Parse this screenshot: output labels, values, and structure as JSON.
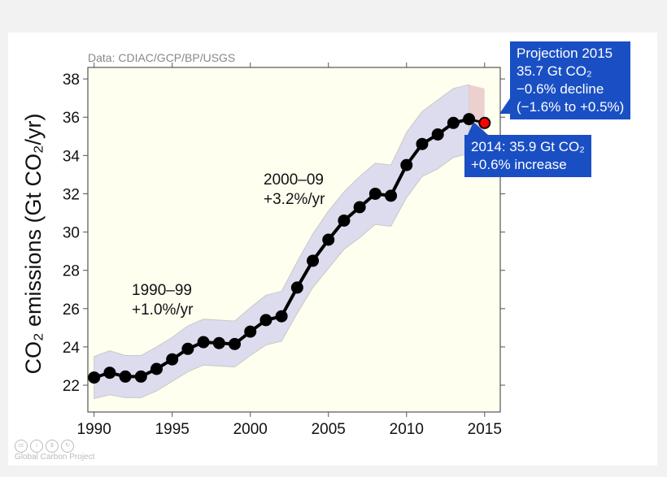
{
  "chart_data": {
    "type": "line",
    "source_note": "Data: CDIAC/GCP/BP/USGS",
    "ylabel": "CO₂ emissions (Gt CO₂/yr)",
    "xlabel": "",
    "xlim": [
      1989.6,
      2016
    ],
    "ylim": [
      20.6,
      38.6
    ],
    "x_ticks": [
      1990,
      1995,
      2000,
      2005,
      2010,
      2015
    ],
    "y_ticks": [
      22,
      24,
      26,
      28,
      30,
      32,
      34,
      36,
      38
    ],
    "grid": false,
    "plot_background": "#fffff0",
    "series": [
      {
        "x": [
          1990,
          1991,
          1992,
          1993,
          1994,
          1995,
          1996,
          1997,
          1998,
          1999,
          2000,
          2001,
          2002,
          2003,
          2004,
          2005,
          2006,
          2007,
          2008,
          2009,
          2010,
          2011,
          2012,
          2013,
          2014
        ],
        "y": [
          22.4,
          22.65,
          22.45,
          22.45,
          22.85,
          23.35,
          23.9,
          24.25,
          24.2,
          24.15,
          24.8,
          25.4,
          25.6,
          27.1,
          28.5,
          29.6,
          30.6,
          31.3,
          32.0,
          31.9,
          33.5,
          34.6,
          35.1,
          35.7,
          35.9
        ],
        "color": "#000000"
      }
    ],
    "uncertainty_band": {
      "color": "#dcdcee",
      "lower": [
        21.3,
        21.5,
        21.35,
        21.35,
        21.7,
        22.2,
        22.7,
        23.05,
        23.0,
        22.95,
        23.55,
        24.1,
        24.3,
        25.75,
        27.1,
        28.1,
        29.1,
        29.7,
        30.4,
        30.3,
        31.8,
        32.9,
        33.3,
        33.9,
        34.1
      ],
      "upper": [
        23.5,
        23.8,
        23.55,
        23.55,
        24.0,
        24.5,
        25.1,
        25.45,
        25.4,
        25.35,
        26.05,
        26.7,
        26.9,
        28.45,
        29.9,
        31.1,
        32.1,
        32.9,
        33.6,
        33.5,
        35.2,
        36.3,
        36.9,
        37.5,
        37.7
      ]
    },
    "projection": {
      "x": 2015,
      "y": 35.7,
      "color": "#ff0000",
      "band_color": "#ecd0d0",
      "band_lower": [
        34.1,
        34.0
      ],
      "band_upper": [
        37.7,
        37.5
      ]
    },
    "annotations": [
      {
        "lines": [
          "1990–99",
          "+1.0%/yr"
        ]
      },
      {
        "lines": [
          "2000–09",
          "+3.2%/yr"
        ]
      }
    ],
    "callouts": {
      "color": "#1a4fc4",
      "projection": [
        "Projection 2015",
        "35.7 Gt CO₂",
        "−0.6% decline",
        "(−1.6% to +0.5%)"
      ],
      "latest": [
        "2014: 35.9 Gt CO₂",
        "+0.6% increase"
      ]
    }
  },
  "credit": {
    "text": "Global Carbon Project",
    "icons": [
      "cc-icon",
      "attribution-icon",
      "noncommercial-icon",
      "sharealike-icon"
    ],
    "icon_glyphs": [
      "cc",
      "i",
      "$",
      "↻"
    ]
  }
}
